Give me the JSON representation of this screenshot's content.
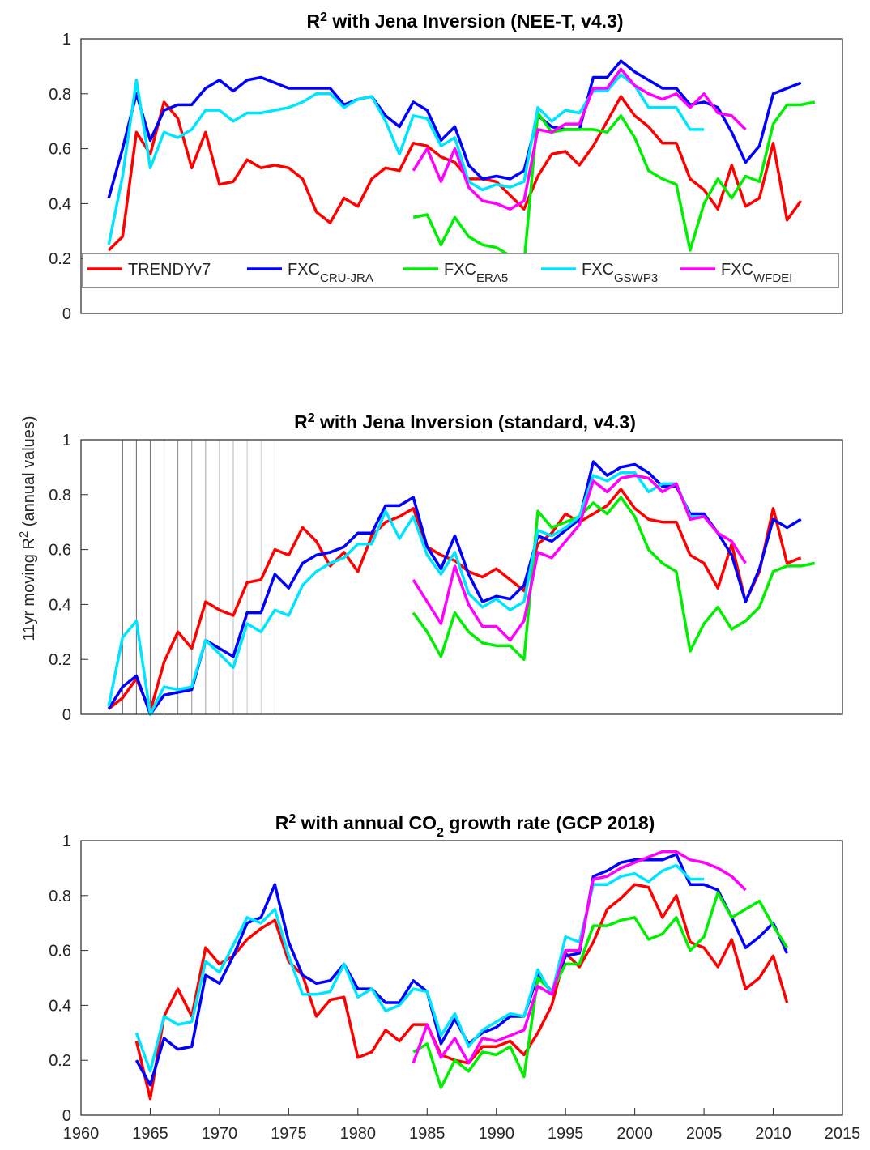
{
  "chart_data": [
    {
      "type": "line",
      "title_parts": [
        {
          "text": "R"
        },
        {
          "text": "2",
          "script": "sup"
        },
        {
          "text": " with Jena Inversion (NEE-T, v4.3)"
        }
      ],
      "x": [
        1962,
        1963,
        1964,
        1965,
        1966,
        1967,
        1968,
        1969,
        1970,
        1971,
        1972,
        1973,
        1974,
        1975,
        1976,
        1977,
        1978,
        1979,
        1980,
        1981,
        1982,
        1983,
        1984,
        1985,
        1986,
        1987,
        1988,
        1989,
        1990,
        1991,
        1992,
        1993,
        1994,
        1995,
        1996,
        1997,
        1998,
        1999,
        2000,
        2001,
        2002,
        2003,
        2004,
        2005,
        2006,
        2007,
        2008,
        2009,
        2010,
        2011,
        2012,
        2013
      ],
      "xlim": [
        1960,
        2015
      ],
      "ylim": [
        0,
        1
      ],
      "yticks": [
        0,
        0.2,
        0.4,
        0.6,
        0.8,
        1
      ],
      "legend": "bottom",
      "series": [
        {
          "name": "TRENDYv7",
          "color": "#ff0000",
          "values": [
            0.23,
            0.28,
            0.66,
            0.58,
            0.77,
            0.71,
            0.53,
            0.66,
            0.47,
            0.48,
            0.56,
            0.53,
            0.54,
            0.53,
            0.49,
            0.37,
            0.33,
            0.42,
            0.39,
            0.49,
            0.53,
            0.52,
            0.62,
            0.61,
            0.57,
            0.55,
            0.49,
            0.49,
            0.48,
            0.43,
            0.38,
            0.5,
            0.58,
            0.59,
            0.54,
            0.61,
            0.7,
            0.79,
            0.72,
            0.68,
            0.62,
            0.62,
            0.49,
            0.45,
            0.38,
            0.54,
            0.39,
            0.42,
            0.62,
            0.34,
            0.41,
            null
          ]
        },
        {
          "name": "FXC",
          "name_sub": "CRU-JRA",
          "color": "#0000ff",
          "values": [
            0.42,
            0.6,
            0.8,
            0.63,
            0.74,
            0.76,
            0.76,
            0.82,
            0.85,
            0.81,
            0.85,
            0.86,
            0.84,
            0.82,
            0.82,
            0.82,
            0.82,
            0.76,
            0.78,
            0.79,
            0.72,
            0.68,
            0.77,
            0.74,
            0.63,
            0.68,
            0.54,
            0.49,
            0.5,
            0.49,
            0.52,
            0.72,
            0.68,
            0.67,
            0.67,
            0.86,
            0.86,
            0.92,
            0.88,
            0.85,
            0.82,
            0.82,
            0.76,
            0.77,
            0.75,
            0.66,
            0.55,
            0.61,
            0.8,
            0.82,
            0.84,
            null
          ]
        },
        {
          "name": "FXC",
          "name_sub": "ERA5",
          "color": "#00ee00",
          "values": [
            null,
            null,
            null,
            null,
            null,
            null,
            null,
            null,
            null,
            null,
            null,
            null,
            null,
            null,
            null,
            null,
            null,
            null,
            null,
            null,
            null,
            null,
            0.35,
            0.36,
            0.25,
            0.35,
            0.28,
            0.25,
            0.24,
            0.21,
            0.18,
            0.73,
            0.66,
            0.67,
            0.67,
            0.67,
            0.66,
            0.72,
            0.64,
            0.52,
            0.49,
            0.47,
            0.23,
            0.4,
            0.49,
            0.42,
            0.5,
            0.48,
            0.69,
            0.76,
            0.76,
            0.77
          ]
        },
        {
          "name": "FXC",
          "name_sub": "GSWP3",
          "color": "#00e5ff",
          "values": [
            0.25,
            0.5,
            0.85,
            0.53,
            0.66,
            0.64,
            0.67,
            0.74,
            0.74,
            0.7,
            0.73,
            0.73,
            0.74,
            0.75,
            0.77,
            0.8,
            0.8,
            0.75,
            0.78,
            0.79,
            0.7,
            0.58,
            0.72,
            0.71,
            0.61,
            0.64,
            0.48,
            0.45,
            0.47,
            0.46,
            0.48,
            0.75,
            0.7,
            0.74,
            0.73,
            0.81,
            0.81,
            0.87,
            0.83,
            0.75,
            0.75,
            0.75,
            0.67,
            0.67,
            null,
            null,
            null,
            null,
            null,
            null,
            null,
            null
          ]
        },
        {
          "name": "FXC",
          "name_sub": "WFDEI",
          "color": "#ff00ff",
          "values": [
            null,
            null,
            null,
            null,
            null,
            null,
            null,
            null,
            null,
            null,
            null,
            null,
            null,
            null,
            null,
            null,
            null,
            null,
            null,
            null,
            null,
            null,
            0.52,
            0.6,
            0.48,
            0.6,
            0.46,
            0.41,
            0.4,
            0.38,
            0.41,
            0.67,
            0.66,
            0.69,
            0.69,
            0.82,
            0.82,
            0.89,
            0.83,
            0.8,
            0.78,
            0.8,
            0.75,
            0.8,
            0.73,
            0.72,
            0.67,
            null,
            null,
            null,
            null,
            null
          ]
        }
      ]
    },
    {
      "type": "line",
      "title_parts": [
        {
          "text": "R"
        },
        {
          "text": "2",
          "script": "sup"
        },
        {
          "text": " with Jena Inversion (standard, v4.3)"
        }
      ],
      "ylabel_parts": [
        {
          "text": "11yr moving R"
        },
        {
          "text": "2",
          "script": "sup"
        },
        {
          "text": " (annual values)"
        }
      ],
      "x": [
        1962,
        1963,
        1964,
        1965,
        1966,
        1967,
        1968,
        1969,
        1970,
        1971,
        1972,
        1973,
        1974,
        1975,
        1976,
        1977,
        1978,
        1979,
        1980,
        1981,
        1982,
        1983,
        1984,
        1985,
        1986,
        1987,
        1988,
        1989,
        1990,
        1991,
        1992,
        1993,
        1994,
        1995,
        1996,
        1997,
        1998,
        1999,
        2000,
        2001,
        2002,
        2003,
        2004,
        2005,
        2006,
        2007,
        2008,
        2009,
        2010,
        2011,
        2012,
        2013
      ],
      "xlim": [
        1960,
        2015
      ],
      "ylim": [
        0,
        1
      ],
      "yticks": [
        0,
        0.2,
        0.4,
        0.6,
        0.8,
        1
      ],
      "vlines": [
        1963,
        1964,
        1965,
        1966,
        1967,
        1968,
        1969,
        1970,
        1971,
        1972,
        1973,
        1974
      ],
      "series": [
        {
          "color": "#ff0000",
          "values": [
            0.02,
            0.06,
            0.13,
            0.01,
            0.19,
            0.3,
            0.24,
            0.41,
            0.38,
            0.36,
            0.48,
            0.49,
            0.6,
            0.58,
            0.68,
            0.63,
            0.54,
            0.59,
            0.52,
            0.65,
            0.7,
            0.72,
            0.75,
            0.61,
            0.58,
            0.56,
            0.52,
            0.5,
            0.53,
            0.49,
            0.45,
            0.62,
            0.66,
            0.73,
            0.7,
            0.73,
            0.76,
            0.82,
            0.75,
            0.71,
            0.7,
            0.7,
            0.58,
            0.55,
            0.46,
            0.62,
            0.41,
            0.52,
            0.75,
            0.55,
            0.57,
            null
          ]
        },
        {
          "color": "#0000ff",
          "values": [
            0.02,
            0.1,
            0.14,
            0.0,
            0.07,
            0.08,
            0.09,
            0.27,
            0.24,
            0.21,
            0.37,
            0.37,
            0.51,
            0.46,
            0.55,
            0.58,
            0.59,
            0.61,
            0.66,
            0.66,
            0.76,
            0.76,
            0.79,
            0.61,
            0.53,
            0.65,
            0.51,
            0.41,
            0.43,
            0.42,
            0.47,
            0.65,
            0.63,
            0.67,
            0.71,
            0.92,
            0.87,
            0.9,
            0.91,
            0.88,
            0.83,
            0.83,
            0.73,
            0.73,
            0.66,
            0.58,
            0.41,
            0.53,
            0.71,
            0.68,
            0.71,
            null
          ]
        },
        {
          "color": "#00ee00",
          "values": [
            null,
            null,
            null,
            null,
            null,
            null,
            null,
            null,
            null,
            null,
            null,
            null,
            null,
            null,
            null,
            null,
            null,
            null,
            null,
            null,
            null,
            null,
            0.37,
            0.3,
            0.21,
            0.37,
            0.3,
            0.26,
            0.25,
            0.25,
            0.2,
            0.74,
            0.68,
            0.7,
            0.72,
            0.77,
            0.73,
            0.79,
            0.72,
            0.6,
            0.55,
            0.52,
            0.23,
            0.33,
            0.39,
            0.31,
            0.34,
            0.39,
            0.52,
            0.54,
            0.54,
            0.55
          ]
        },
        {
          "color": "#00e5ff",
          "values": [
            0.03,
            0.28,
            0.34,
            0.0,
            0.1,
            0.09,
            0.1,
            0.27,
            0.22,
            0.17,
            0.33,
            0.3,
            0.38,
            0.36,
            0.47,
            0.52,
            0.55,
            0.57,
            0.62,
            0.62,
            0.74,
            0.64,
            0.72,
            0.58,
            0.51,
            0.59,
            0.44,
            0.39,
            0.42,
            0.38,
            0.41,
            0.67,
            0.65,
            0.68,
            0.72,
            0.87,
            0.85,
            0.88,
            0.88,
            0.81,
            0.84,
            0.84,
            0.72,
            0.72,
            null,
            null,
            null,
            null,
            null,
            null,
            null,
            null
          ]
        },
        {
          "color": "#ff00ff",
          "values": [
            null,
            null,
            null,
            null,
            null,
            null,
            null,
            null,
            null,
            null,
            null,
            null,
            null,
            null,
            null,
            null,
            null,
            null,
            null,
            null,
            null,
            null,
            0.49,
            0.41,
            0.33,
            0.54,
            0.4,
            0.32,
            0.32,
            0.27,
            0.34,
            0.59,
            0.57,
            0.63,
            0.69,
            0.85,
            0.81,
            0.86,
            0.87,
            0.86,
            0.81,
            0.84,
            0.71,
            0.72,
            0.66,
            0.63,
            0.55,
            null,
            null,
            null,
            null,
            null
          ]
        }
      ]
    },
    {
      "type": "line",
      "title_parts": [
        {
          "text": "R"
        },
        {
          "text": "2",
          "script": "sup"
        },
        {
          "text": " with annual CO"
        },
        {
          "text": "2",
          "script": "sub"
        },
        {
          "text": " growth rate (GCP 2018)"
        }
      ],
      "x": [
        1962,
        1963,
        1964,
        1965,
        1966,
        1967,
        1968,
        1969,
        1970,
        1971,
        1972,
        1973,
        1974,
        1975,
        1976,
        1977,
        1978,
        1979,
        1980,
        1981,
        1982,
        1983,
        1984,
        1985,
        1986,
        1987,
        1988,
        1989,
        1990,
        1991,
        1992,
        1993,
        1994,
        1995,
        1996,
        1997,
        1998,
        1999,
        2000,
        2001,
        2002,
        2003,
        2004,
        2005,
        2006,
        2007,
        2008,
        2009,
        2010,
        2011,
        2012,
        2013
      ],
      "xlim": [
        1960,
        2015
      ],
      "xticks": [
        1960,
        1965,
        1970,
        1975,
        1980,
        1985,
        1990,
        1995,
        2000,
        2005,
        2010,
        2015
      ],
      "ylim": [
        0,
        1
      ],
      "yticks": [
        0,
        0.2,
        0.4,
        0.6,
        0.8,
        1
      ],
      "series": [
        {
          "color": "#ff0000",
          "values": [
            null,
            null,
            0.27,
            0.06,
            0.36,
            0.46,
            0.36,
            0.61,
            0.55,
            0.58,
            0.64,
            0.68,
            0.71,
            0.56,
            0.51,
            0.36,
            0.42,
            0.43,
            0.21,
            0.23,
            0.31,
            0.27,
            0.33,
            0.33,
            0.22,
            0.2,
            0.19,
            0.25,
            0.25,
            0.27,
            0.22,
            0.3,
            0.4,
            0.59,
            0.54,
            0.63,
            0.75,
            0.79,
            0.84,
            0.83,
            0.72,
            0.8,
            0.63,
            0.61,
            0.54,
            0.64,
            0.46,
            0.5,
            0.58,
            0.41,
            null,
            null
          ]
        },
        {
          "color": "#0000ff",
          "values": [
            null,
            null,
            0.2,
            0.11,
            0.28,
            0.24,
            0.25,
            0.51,
            0.48,
            0.58,
            0.7,
            0.72,
            0.84,
            0.63,
            0.51,
            0.48,
            0.49,
            0.55,
            0.46,
            0.46,
            0.41,
            0.41,
            0.49,
            0.45,
            0.26,
            0.35,
            0.26,
            0.3,
            0.32,
            0.36,
            0.36,
            0.51,
            0.45,
            0.58,
            0.59,
            0.87,
            0.89,
            0.92,
            0.93,
            0.93,
            0.93,
            0.95,
            0.84,
            0.84,
            0.82,
            0.72,
            0.61,
            0.65,
            0.7,
            0.59,
            null,
            null
          ]
        },
        {
          "color": "#00ee00",
          "values": [
            null,
            null,
            null,
            null,
            null,
            null,
            null,
            null,
            null,
            null,
            null,
            null,
            null,
            null,
            null,
            null,
            null,
            null,
            null,
            null,
            null,
            null,
            0.23,
            0.26,
            0.1,
            0.2,
            0.16,
            0.23,
            0.22,
            0.25,
            0.14,
            0.5,
            0.45,
            0.55,
            0.55,
            0.69,
            0.69,
            0.71,
            0.72,
            0.64,
            0.66,
            0.72,
            0.6,
            0.65,
            0.81,
            0.72,
            0.75,
            0.78,
            0.69,
            0.61,
            null,
            null
          ]
        },
        {
          "color": "#00e5ff",
          "values": [
            null,
            null,
            0.3,
            0.16,
            0.36,
            0.33,
            0.34,
            0.56,
            0.52,
            0.62,
            0.72,
            0.7,
            0.75,
            0.58,
            0.44,
            0.44,
            0.45,
            0.55,
            0.43,
            0.46,
            0.38,
            0.4,
            0.46,
            0.45,
            0.29,
            0.37,
            0.25,
            0.31,
            0.34,
            0.37,
            0.36,
            0.53,
            0.44,
            0.65,
            0.63,
            0.84,
            0.84,
            0.87,
            0.88,
            0.85,
            0.89,
            0.91,
            0.86,
            0.86,
            null,
            null,
            null,
            null,
            null,
            null,
            null,
            null
          ]
        },
        {
          "color": "#ff00ff",
          "values": [
            null,
            null,
            null,
            null,
            null,
            null,
            null,
            null,
            null,
            null,
            null,
            null,
            null,
            null,
            null,
            null,
            null,
            null,
            null,
            null,
            null,
            null,
            0.19,
            0.33,
            0.21,
            0.28,
            0.19,
            0.28,
            0.27,
            0.29,
            0.31,
            0.47,
            0.44,
            0.6,
            0.6,
            0.86,
            0.87,
            0.9,
            0.92,
            0.94,
            0.96,
            0.96,
            0.93,
            0.92,
            0.9,
            0.87,
            0.82,
            null,
            null,
            null,
            null,
            null
          ]
        }
      ]
    }
  ]
}
